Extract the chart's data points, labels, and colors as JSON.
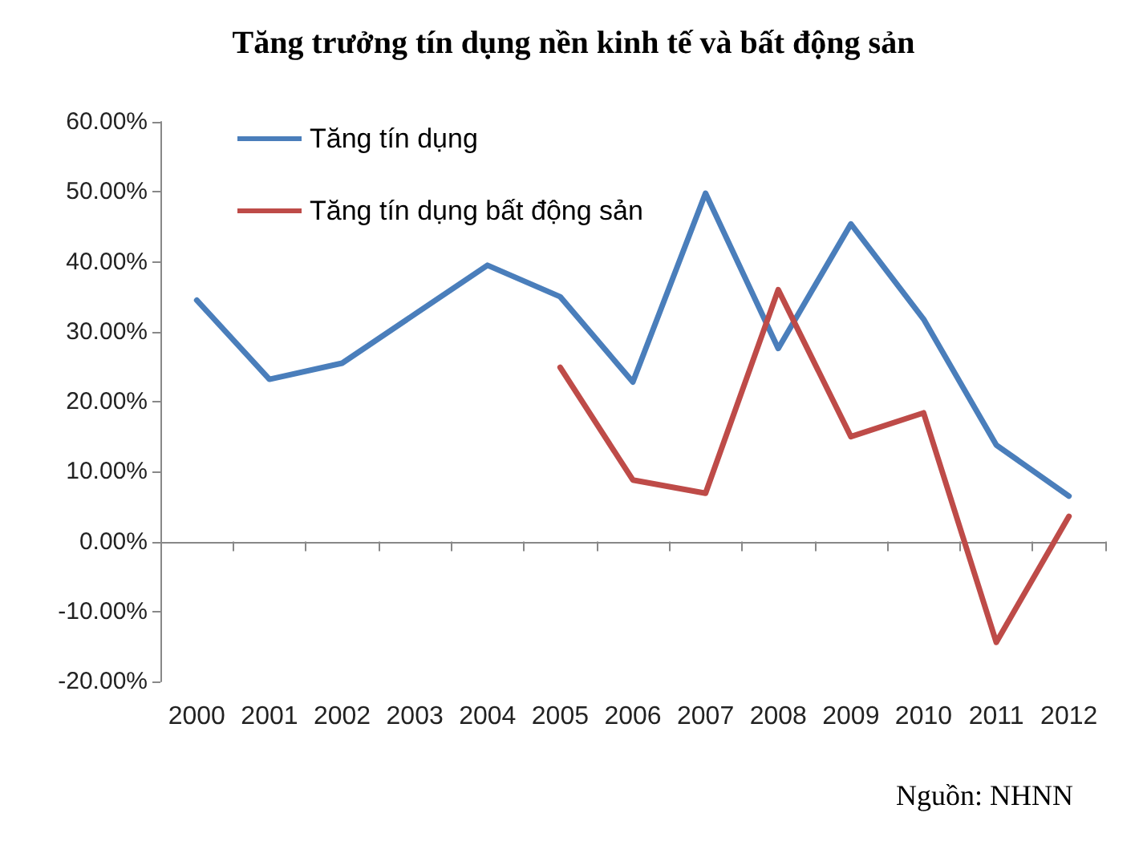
{
  "chart_data": {
    "type": "line",
    "title": "Tăng trưởng tín dụng nền kinh tế và bất động sản",
    "categories": [
      "2000",
      "2001",
      "2002",
      "2003",
      "2004",
      "2005",
      "2006",
      "2007",
      "2008",
      "2009",
      "2010",
      "2011",
      "2012"
    ],
    "series": [
      {
        "name": "Tăng tín dụng",
        "color": "#4a7ebb",
        "values": [
          34.5,
          23.2,
          25.5,
          32.5,
          39.5,
          35,
          22.8,
          49.8,
          27.6,
          45.4,
          31.8,
          13.8,
          6.5
        ]
      },
      {
        "name": "Tăng tín dụng bất động sản",
        "color": "#be4b48",
        "values": [
          null,
          null,
          null,
          null,
          null,
          24.9,
          8.8,
          6.9,
          36,
          15,
          18.4,
          -14.4,
          3.6
        ]
      }
    ],
    "ylim": [
      -20,
      60
    ],
    "yticks": [
      {
        "value": -20,
        "label": "-20.00%"
      },
      {
        "value": -10,
        "label": "-10.00%"
      },
      {
        "value": 0,
        "label": "0.00%"
      },
      {
        "value": 10,
        "label": "10.00%"
      },
      {
        "value": 20,
        "label": "20.00%"
      },
      {
        "value": 30,
        "label": "30.00%"
      },
      {
        "value": 40,
        "label": "40.00%"
      },
      {
        "value": 50,
        "label": "50.00%"
      },
      {
        "value": 60,
        "label": "60.00%"
      }
    ],
    "legend": "top left",
    "marker": "none",
    "line_style": "solid",
    "annotations": [
      "Nguồn: NHNN"
    ]
  }
}
